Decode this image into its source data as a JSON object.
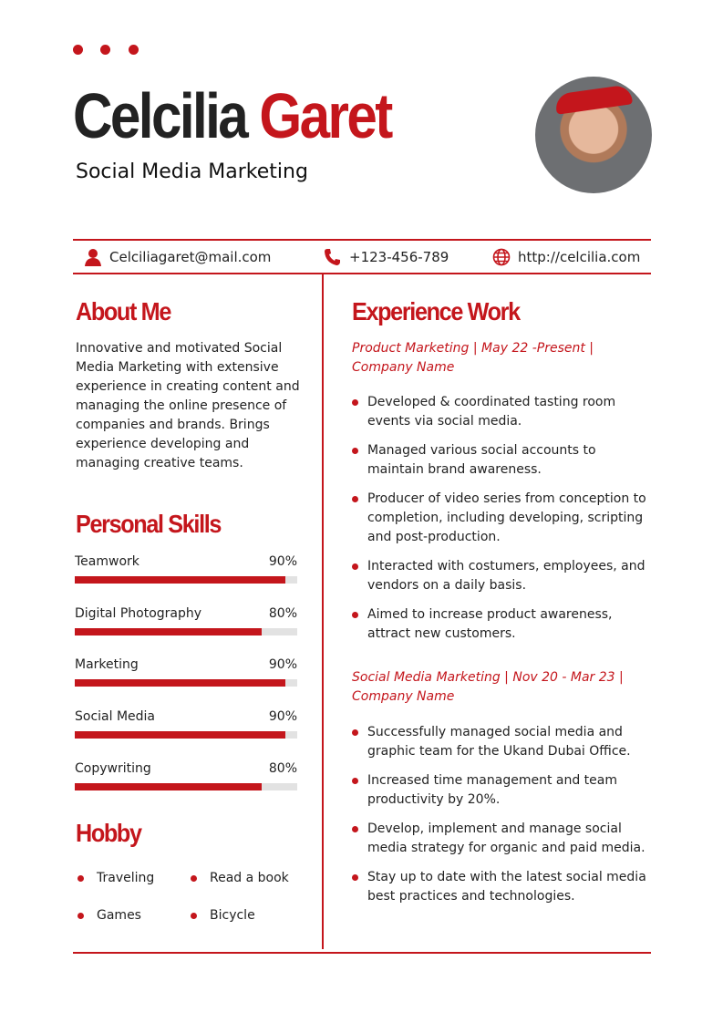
{
  "header": {
    "first_name": "Celcilia",
    "last_name": "Garet",
    "title": "Social Media Marketing"
  },
  "contact": {
    "email": "Celciliagaret@mail.com",
    "phone": "+123-456-789",
    "website": "http://celcilia.com"
  },
  "colors": {
    "accent": "#c4161c"
  },
  "about": {
    "heading": "About Me",
    "text": "Innovative and motivated Social Media Marketing with extensive experience in creating content and managing the online presence of companies and brands. Brings experience developing and managing creative teams."
  },
  "skills": {
    "heading": "Personal Skills",
    "items": [
      {
        "name": "Teamwork",
        "percent_label": "90%",
        "level": 0.9
      },
      {
        "name": "Digital Photography",
        "percent_label": "80%",
        "level": 0.8
      },
      {
        "name": "Marketing",
        "percent_label": "90%",
        "level": 0.9
      },
      {
        "name": "Social Media",
        "percent_label": "90%",
        "level": 0.9
      },
      {
        "name": "Copywriting",
        "percent_label": "80%",
        "level": 0.8
      }
    ]
  },
  "hobby": {
    "heading": "Hobby",
    "items": [
      "Traveling",
      "Read a book",
      "Games",
      "Bicycle"
    ]
  },
  "experience": {
    "heading": "Experience Work",
    "jobs": [
      {
        "title": "Product Marketing | May 22 -Present | Company Name",
        "bullets": [
          "Developed & coordinated tasting room events via social media.",
          "Managed various social accounts to maintain brand awareness.",
          "Producer of video series from conception to completion, including developing, scripting and post-production.",
          "Interacted with costumers, employees, and vendors on a daily basis.",
          "Aimed to increase product awareness, attract new customers."
        ]
      },
      {
        "title": "Social Media Marketing | Nov 20 - Mar 23 | Company Name",
        "bullets": [
          "Successfully managed social media and graphic team for the Ukand Dubai Office.",
          "Increased time management and team productivity by 20%.",
          "Develop, implement and manage social media strategy for organic and paid media.",
          "Stay up to date with the latest social media best practices and technologies."
        ]
      }
    ]
  }
}
